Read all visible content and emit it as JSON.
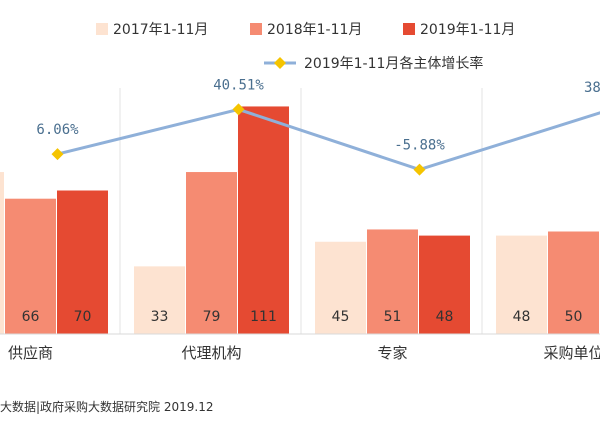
{
  "chart_data": {
    "type": "bar",
    "categories": [
      "供应商",
      "代理机构",
      "专家",
      "采购单位"
    ],
    "series": [
      {
        "name": "2017年1-11月",
        "values": [
          null,
          33,
          45,
          48
        ],
        "color": "#fde3d1"
      },
      {
        "name": "2018年1-11月",
        "values": [
          66,
          79,
          51,
          50
        ],
        "color": "#f58b72"
      },
      {
        "name": "2019年1-11月",
        "values": [
          70,
          111,
          48,
          null
        ],
        "color": "#e54a32"
      }
    ],
    "line_series": {
      "name": "2019年1-11月各主体增长率",
      "labels": [
        "6.06%",
        "40.51%",
        "-5.88%",
        "38"
      ],
      "color": "#8fb0d9",
      "marker_color": "#f5c400"
    },
    "ylim": [
      0,
      120
    ],
    "title": "",
    "xlabel": "",
    "ylabel": "",
    "grid": false,
    "legend_position": "top"
  },
  "source": "大数据|政府采购大数据研究院 2019.12"
}
